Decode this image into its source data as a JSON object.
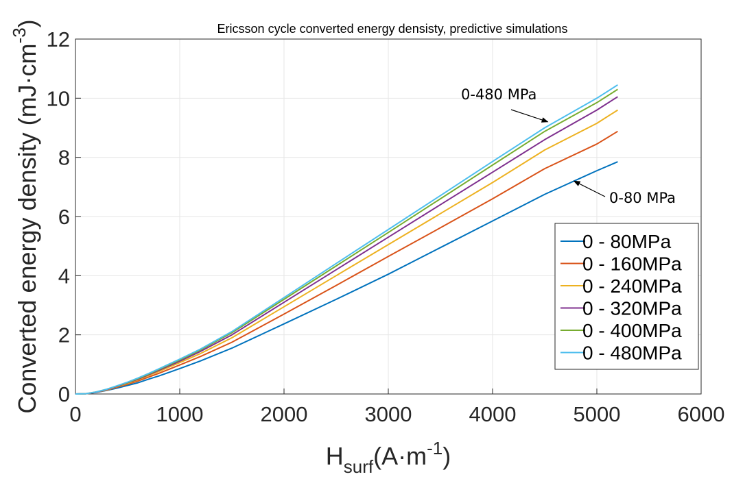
{
  "chart_data": {
    "type": "line",
    "title": "Ericsson cycle converted energy densisty, predictive simulations",
    "xlabel": {
      "main": "H",
      "sub": "surf",
      "rest": "(A·m",
      "sup": "-1",
      "close": ")"
    },
    "ylabel": {
      "main": "Converted energy density (mJ·cm",
      "sup": "-3",
      "close": ")"
    },
    "xlim": [
      0,
      6000
    ],
    "ylim": [
      0,
      12
    ],
    "xticks": [
      0,
      1000,
      2000,
      3000,
      4000,
      5000,
      6000
    ],
    "yticks": [
      0,
      2,
      4,
      6,
      8,
      10,
      12
    ],
    "xtick_labels": [
      "0",
      "1000",
      "2000",
      "3000",
      "4000",
      "5000",
      "6000"
    ],
    "ytick_labels": [
      "0",
      "2",
      "4",
      "6",
      "8",
      "10",
      "12"
    ],
    "grid": true,
    "legend_position": "right",
    "x": [
      0,
      100,
      200,
      300,
      400,
      500,
      600,
      700,
      800,
      1000,
      1200,
      1500,
      2000,
      2500,
      3000,
      3500,
      4000,
      4500,
      5000,
      5200
    ],
    "series": [
      {
        "name": "0 - 80MPa",
        "color": "#0072BD",
        "values": [
          0,
          0.01,
          0.05,
          0.12,
          0.2,
          0.29,
          0.38,
          0.5,
          0.61,
          0.86,
          1.12,
          1.55,
          2.37,
          3.2,
          4.05,
          4.95,
          5.85,
          6.75,
          7.55,
          7.85
        ]
      },
      {
        "name": "0 - 160MPa",
        "color": "#D95319",
        "values": [
          0,
          0.01,
          0.06,
          0.13,
          0.23,
          0.33,
          0.44,
          0.57,
          0.7,
          0.98,
          1.27,
          1.75,
          2.7,
          3.67,
          4.65,
          5.62,
          6.6,
          7.62,
          8.45,
          8.88
        ]
      },
      {
        "name": "0 - 240MPa",
        "color": "#EDB120",
        "values": [
          0,
          0.01,
          0.06,
          0.14,
          0.25,
          0.36,
          0.48,
          0.62,
          0.76,
          1.06,
          1.37,
          1.9,
          2.95,
          4.0,
          5.05,
          6.1,
          7.15,
          8.25,
          9.15,
          9.6
        ]
      },
      {
        "name": "0 - 320MPa",
        "color": "#7E2F8E",
        "values": [
          0,
          0.01,
          0.06,
          0.15,
          0.26,
          0.38,
          0.5,
          0.65,
          0.8,
          1.11,
          1.44,
          2.0,
          3.1,
          4.2,
          5.3,
          6.4,
          7.5,
          8.6,
          9.6,
          10.05
        ]
      },
      {
        "name": "0 - 400MPa",
        "color": "#77AC30",
        "values": [
          0,
          0.01,
          0.07,
          0.16,
          0.27,
          0.39,
          0.52,
          0.67,
          0.83,
          1.15,
          1.49,
          2.07,
          3.2,
          4.33,
          5.46,
          6.6,
          7.74,
          8.88,
          9.85,
          10.3
        ]
      },
      {
        "name": "0 - 480MPa",
        "color": "#4DBEEE",
        "values": [
          0,
          0.01,
          0.07,
          0.16,
          0.28,
          0.4,
          0.54,
          0.69,
          0.85,
          1.18,
          1.52,
          2.11,
          3.26,
          4.41,
          5.56,
          6.71,
          7.86,
          9.0,
          10.0,
          10.45
        ]
      }
    ],
    "annotations": [
      {
        "text": "0-480 MPa",
        "arrow_to": [
          4530,
          9.2
        ]
      },
      {
        "text": "0-80 MPa",
        "arrow_to": [
          4780,
          7.2
        ]
      }
    ]
  }
}
